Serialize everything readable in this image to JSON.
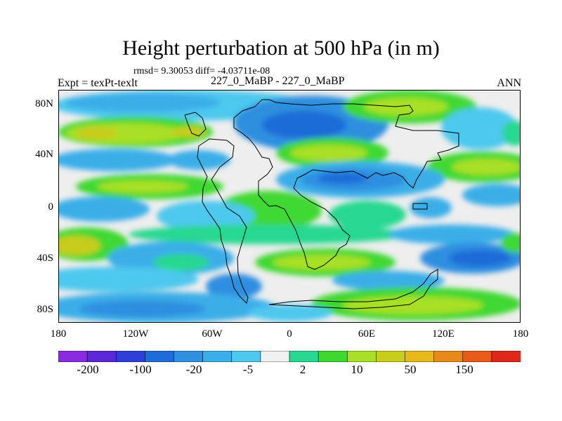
{
  "title": "Height perturbation at 500 hPa (in m)",
  "stats": "rmsd= 9.30053 diff= -4.03711e-08",
  "expt": "Expt = texPt-texlt",
  "runs": "227_0_MaBP - 227_0_MaBP",
  "period": "ANN",
  "lat_ticks": [
    "80N",
    "40N",
    "0",
    "40S",
    "80S"
  ],
  "lon_ticks": [
    "180",
    "120W",
    "60W",
    "0",
    "60E",
    "120E",
    "180"
  ],
  "colorbar": {
    "labels": [
      "-200",
      "-100",
      "-20",
      "-5",
      "2",
      "10",
      "50",
      "150"
    ],
    "colors": [
      "#8a2be2",
      "#5a28d8",
      "#2f3fd8",
      "#1e6cd8",
      "#2f8fe0",
      "#3aaee8",
      "#4ec8ee",
      "#f0f0f0",
      "#28d890",
      "#3fd830",
      "#a8e028",
      "#c8cc1c",
      "#e6b81a",
      "#e88a1a",
      "#e85a18",
      "#e02818"
    ]
  },
  "field_colors": {
    "c_m20": "#1e6cd8",
    "c_m10": "#2f8fe0",
    "c_m5": "#3aaee8",
    "c_m2": "#4ec8ee",
    "c_0": "#eeeeee",
    "c_2": "#28d890",
    "c_5": "#3fd830",
    "c_10": "#a8e028",
    "c_20": "#c8cc1c",
    "c_50": "#e6b81a"
  }
}
